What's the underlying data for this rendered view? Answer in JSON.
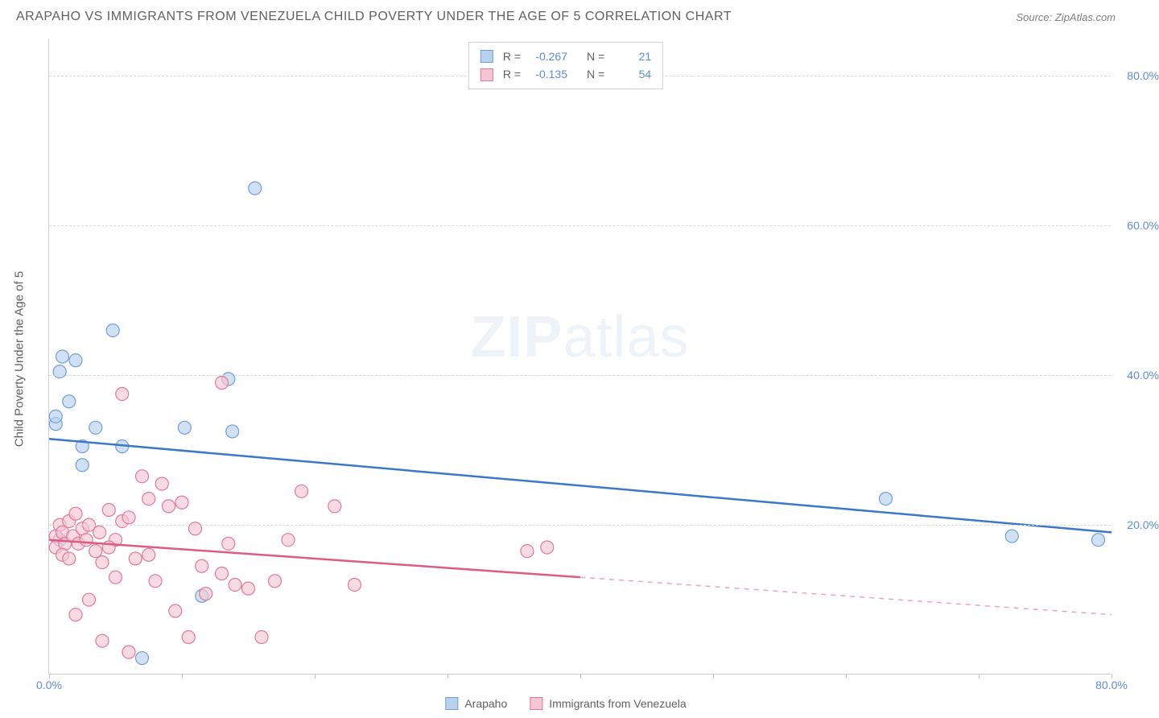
{
  "header": {
    "title": "ARAPAHO VS IMMIGRANTS FROM VENEZUELA CHILD POVERTY UNDER THE AGE OF 5 CORRELATION CHART",
    "source": "Source: ZipAtlas.com"
  },
  "chart": {
    "type": "scatter",
    "ylabel": "Child Poverty Under the Age of 5",
    "watermark": "ZIPatlas",
    "xlim": [
      0,
      80
    ],
    "ylim": [
      0,
      85
    ],
    "yticks": [
      20,
      40,
      60,
      80
    ],
    "ytick_labels": [
      "20.0%",
      "40.0%",
      "60.0%",
      "80.0%"
    ],
    "xticks": [
      0,
      10,
      20,
      30,
      40,
      50,
      60,
      70,
      80
    ],
    "xtick_labels": {
      "0": "0.0%",
      "80": "80.0%"
    },
    "background_color": "#ffffff",
    "grid_color": "#d8d8d8",
    "axis_color": "#d0d0d0"
  },
  "series": [
    {
      "name": "Arapaho",
      "fill_color": "#b8d1ec",
      "stroke_color": "#6f9fd8",
      "line_color": "#3b78c9",
      "marker_radius": 8,
      "fill_opacity": 0.65,
      "r_value": "-0.267",
      "n_value": "21",
      "points": [
        [
          0.5,
          33.5
        ],
        [
          0.5,
          34.5
        ],
        [
          0.8,
          40.5
        ],
        [
          1.0,
          42.5
        ],
        [
          4.8,
          46.0
        ],
        [
          1.5,
          36.5
        ],
        [
          3.5,
          33.0
        ],
        [
          2.5,
          28.0
        ],
        [
          2.5,
          30.5
        ],
        [
          2.0,
          42.0
        ],
        [
          0.8,
          18.0
        ],
        [
          5.5,
          30.5
        ],
        [
          10.2,
          33.0
        ],
        [
          13.5,
          39.5
        ],
        [
          13.8,
          32.5
        ],
        [
          15.5,
          65.0
        ],
        [
          11.5,
          10.5
        ],
        [
          7.0,
          2.2
        ],
        [
          63.0,
          23.5
        ],
        [
          72.5,
          18.5
        ],
        [
          79.0,
          18.0
        ]
      ],
      "trend": {
        "x1": 0,
        "y1": 31.5,
        "x2": 80,
        "y2": 19.0,
        "dash_from_x": 80
      }
    },
    {
      "name": "Immigrants from Venezuela",
      "fill_color": "#f5c6d3",
      "stroke_color": "#e07a97",
      "line_color": "#de5c80",
      "marker_radius": 8,
      "fill_opacity": 0.65,
      "r_value": "-0.135",
      "n_value": "54",
      "points": [
        [
          0.5,
          18.5
        ],
        [
          0.8,
          20.0
        ],
        [
          0.5,
          17.0
        ],
        [
          1.0,
          19.0
        ],
        [
          1.2,
          17.5
        ],
        [
          1.5,
          20.5
        ],
        [
          1.0,
          16.0
        ],
        [
          1.8,
          18.5
        ],
        [
          2.2,
          17.5
        ],
        [
          2.5,
          19.5
        ],
        [
          1.5,
          15.5
        ],
        [
          2.0,
          21.5
        ],
        [
          2.8,
          18.0
        ],
        [
          3.0,
          20.0
        ],
        [
          3.5,
          16.5
        ],
        [
          3.8,
          19.0
        ],
        [
          4.0,
          15.0
        ],
        [
          4.5,
          22.0
        ],
        [
          5.0,
          13.0
        ],
        [
          5.5,
          20.5
        ],
        [
          5.0,
          18.0
        ],
        [
          6.0,
          21.0
        ],
        [
          6.5,
          15.5
        ],
        [
          7.0,
          26.5
        ],
        [
          7.5,
          23.5
        ],
        [
          8.0,
          12.5
        ],
        [
          8.5,
          25.5
        ],
        [
          9.0,
          22.5
        ],
        [
          10.0,
          23.0
        ],
        [
          11.0,
          19.5
        ],
        [
          11.5,
          14.5
        ],
        [
          11.8,
          10.8
        ],
        [
          13.0,
          39.0
        ],
        [
          13.5,
          17.5
        ],
        [
          14.0,
          12.0
        ],
        [
          15.0,
          11.5
        ],
        [
          16.0,
          5.0
        ],
        [
          17.0,
          12.5
        ],
        [
          18.0,
          18.0
        ],
        [
          19.0,
          24.5
        ],
        [
          21.5,
          22.5
        ],
        [
          23.0,
          12.0
        ],
        [
          5.5,
          37.5
        ],
        [
          3.0,
          10.0
        ],
        [
          2.0,
          8.0
        ],
        [
          4.0,
          4.5
        ],
        [
          6.0,
          3.0
        ],
        [
          9.5,
          8.5
        ],
        [
          4.5,
          17.0
        ],
        [
          7.5,
          16.0
        ],
        [
          36.0,
          16.5
        ],
        [
          37.5,
          17.0
        ],
        [
          10.5,
          5.0
        ],
        [
          13.0,
          13.5
        ]
      ],
      "trend": {
        "x1": 0,
        "y1": 18.0,
        "x2": 40,
        "y2": 13.0,
        "dash_from_x": 40,
        "dash_x2": 80,
        "dash_y2": 8.0
      }
    }
  ],
  "legend_top": {
    "r_label": "R =",
    "n_label": "N ="
  },
  "colors": {
    "label_text": "#606060",
    "value_text": "#5b8dd6"
  }
}
